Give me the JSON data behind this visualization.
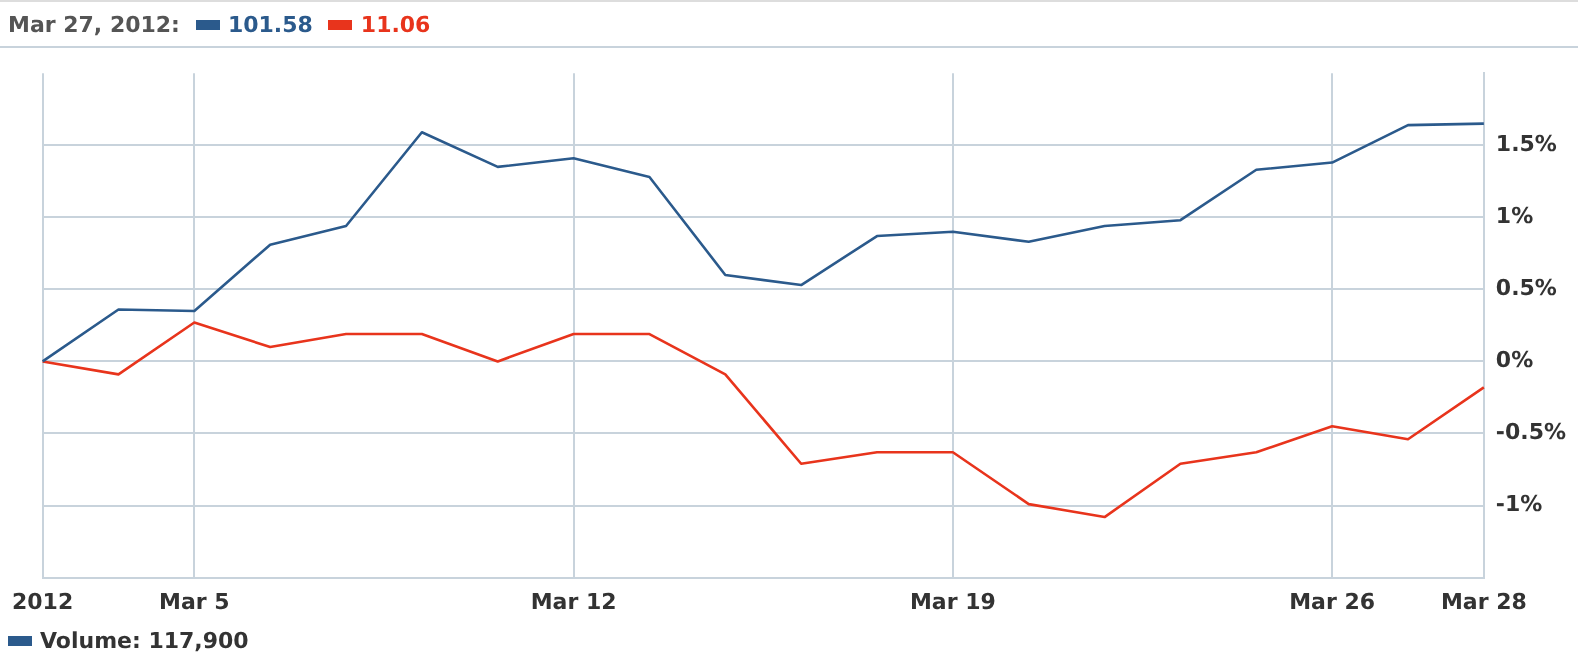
{
  "chart_data": {
    "type": "line",
    "title": "Mar 27, 2012:",
    "categories": [
      "2012",
      null,
      "Mar 5",
      null,
      null,
      null,
      null,
      "Mar 12",
      null,
      null,
      null,
      null,
      "Mar 19",
      null,
      null,
      null,
      null,
      "Mar 26",
      null,
      "Mar 28"
    ],
    "series": [
      {
        "color": "#2b5a8c",
        "values": [
          0,
          0.36,
          0.35,
          0.81,
          0.94,
          1.59,
          1.35,
          1.41,
          1.28,
          0.6,
          0.53,
          0.87,
          0.9,
          0.83,
          0.94,
          0.98,
          1.33,
          1.38,
          1.64,
          1.65
        ]
      },
      {
        "color": "#e8341c",
        "values": [
          0,
          -0.09,
          0.27,
          0.1,
          0.19,
          0.19,
          0,
          0.19,
          0.19,
          -0.09,
          -0.71,
          -0.63,
          -0.63,
          -0.99,
          -1.08,
          -0.71,
          -0.63,
          -0.45,
          -0.54,
          -0.18
        ]
      }
    ],
    "ylim": [
      -1.5,
      2
    ],
    "yticks": [
      {
        "value": -1,
        "label": "-1%"
      },
      {
        "value": -0.5,
        "label": "-0.5%"
      },
      {
        "value": 0,
        "label": "0%"
      },
      {
        "value": 0.5,
        "label": "0.5%"
      },
      {
        "value": 1,
        "label": "1%"
      },
      {
        "value": 1.5,
        "label": "1.5%"
      }
    ],
    "annotations": [
      "101.58",
      "11.06",
      "Volume: 117,900"
    ],
    "grid": true,
    "legend": false,
    "marker": "none",
    "line_style": "solid"
  }
}
